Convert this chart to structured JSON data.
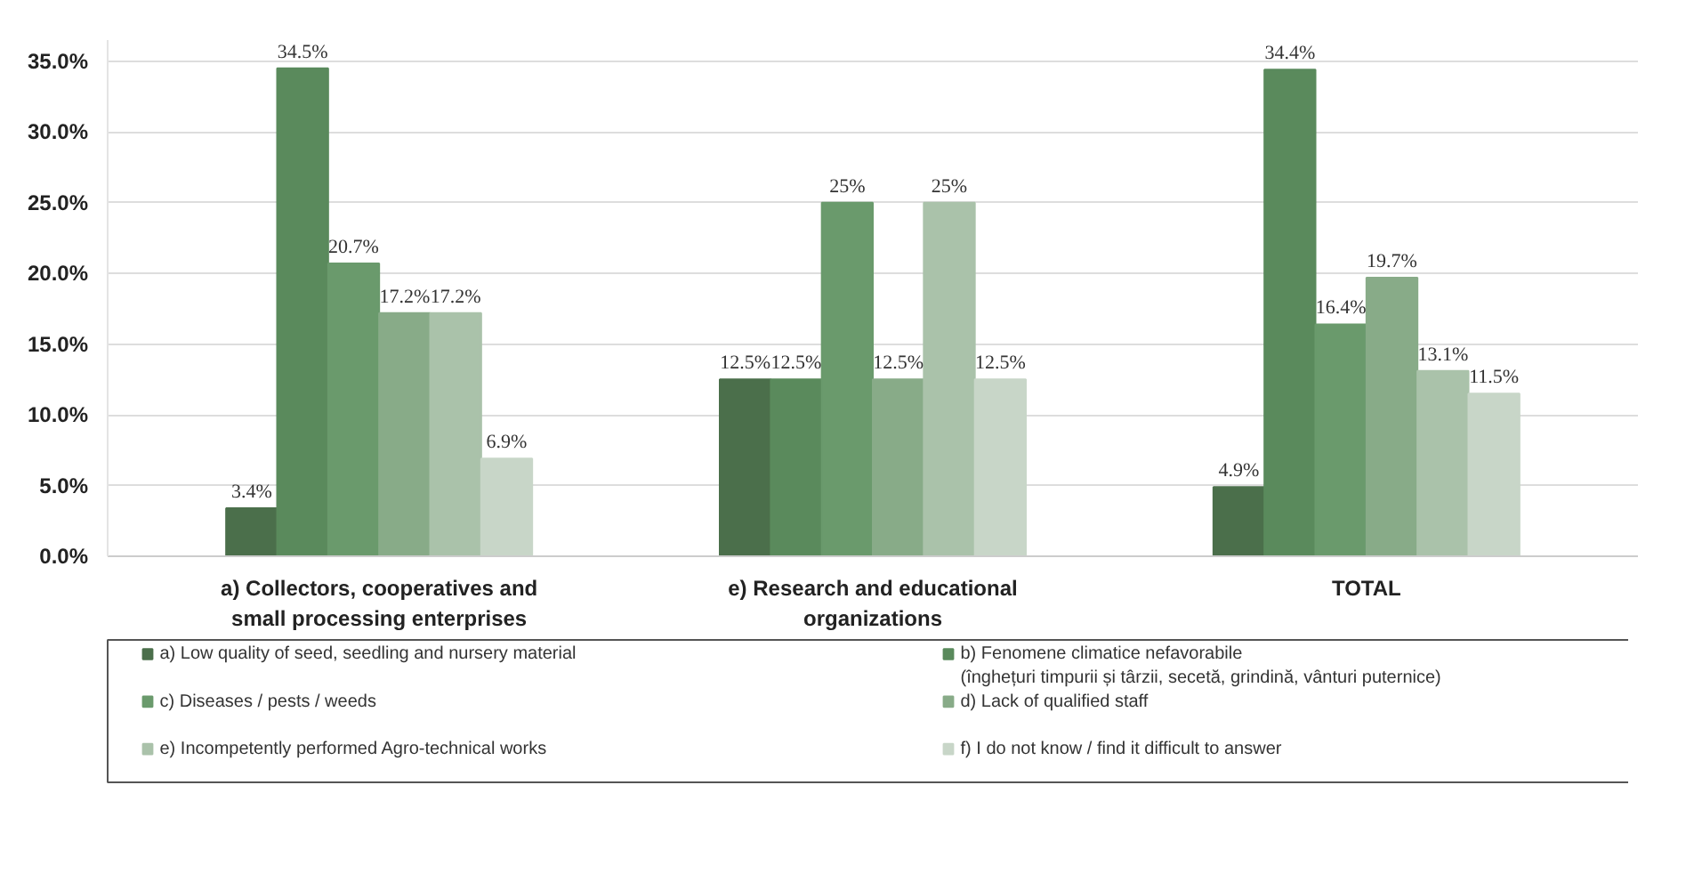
{
  "chart_data": {
    "type": "bar",
    "categories": [
      "a) Collectors, cooperatives and small processing enterprises",
      "e) Research and educational organizations",
      "TOTAL"
    ],
    "ylim": [
      0,
      36.5
    ],
    "yticks": [
      {
        "value": 0,
        "label": "0.0%"
      },
      {
        "value": 5,
        "label": "5.0%"
      },
      {
        "value": 10,
        "label": "10.0%"
      },
      {
        "value": 15,
        "label": "15.0%"
      },
      {
        "value": 20,
        "label": "20.0%"
      },
      {
        "value": 25,
        "label": "25.0%"
      },
      {
        "value": 30,
        "label": "30.0%"
      },
      {
        "value": 35,
        "label": "35.0%"
      }
    ],
    "grid": "y",
    "legend": "bottom",
    "series": [
      {
        "name": "a) Low quality of seed, seedling and nursery material",
        "color": "#4b6f4b",
        "values": [
          3.4,
          12.5,
          4.9
        ],
        "value_labels": [
          "3.4%",
          "12.5%",
          "4.9%"
        ]
      },
      {
        "name": "b) Fenomene climatice nefavorabile\n(înghețuri timpurii și târzii, secetă, grindină, vânturi puternice)",
        "color": "#5a8a5c",
        "values": [
          34.5,
          12.5,
          34.4
        ],
        "value_labels": [
          "34.5%",
          "12.5%",
          "34.4%"
        ]
      },
      {
        "name": "c) Diseases / pests / weeds",
        "color": "#6a9a6c",
        "values": [
          20.7,
          25,
          16.4
        ],
        "value_labels": [
          "20.7%",
          "25%",
          "16.4%"
        ]
      },
      {
        "name": "d) Lack of qualified staff",
        "color": "#88ab88",
        "values": [
          17.2,
          12.5,
          19.7
        ],
        "value_labels": [
          "17.2%",
          "12.5%",
          "19.7%"
        ]
      },
      {
        "name": "e) Incompetently performed Agro-technical works",
        "color": "#aac2aa",
        "values": [
          17.2,
          25,
          13.1
        ],
        "value_labels": [
          "17.2%",
          "25%",
          "13.1%"
        ]
      },
      {
        "name": "f) I do not know / find it difficult to answer",
        "color": "#c8d6c8",
        "values": [
          6.9,
          12.5,
          11.5
        ],
        "value_labels": [
          "6.9%",
          "12.5%",
          "11.5%"
        ]
      }
    ]
  }
}
